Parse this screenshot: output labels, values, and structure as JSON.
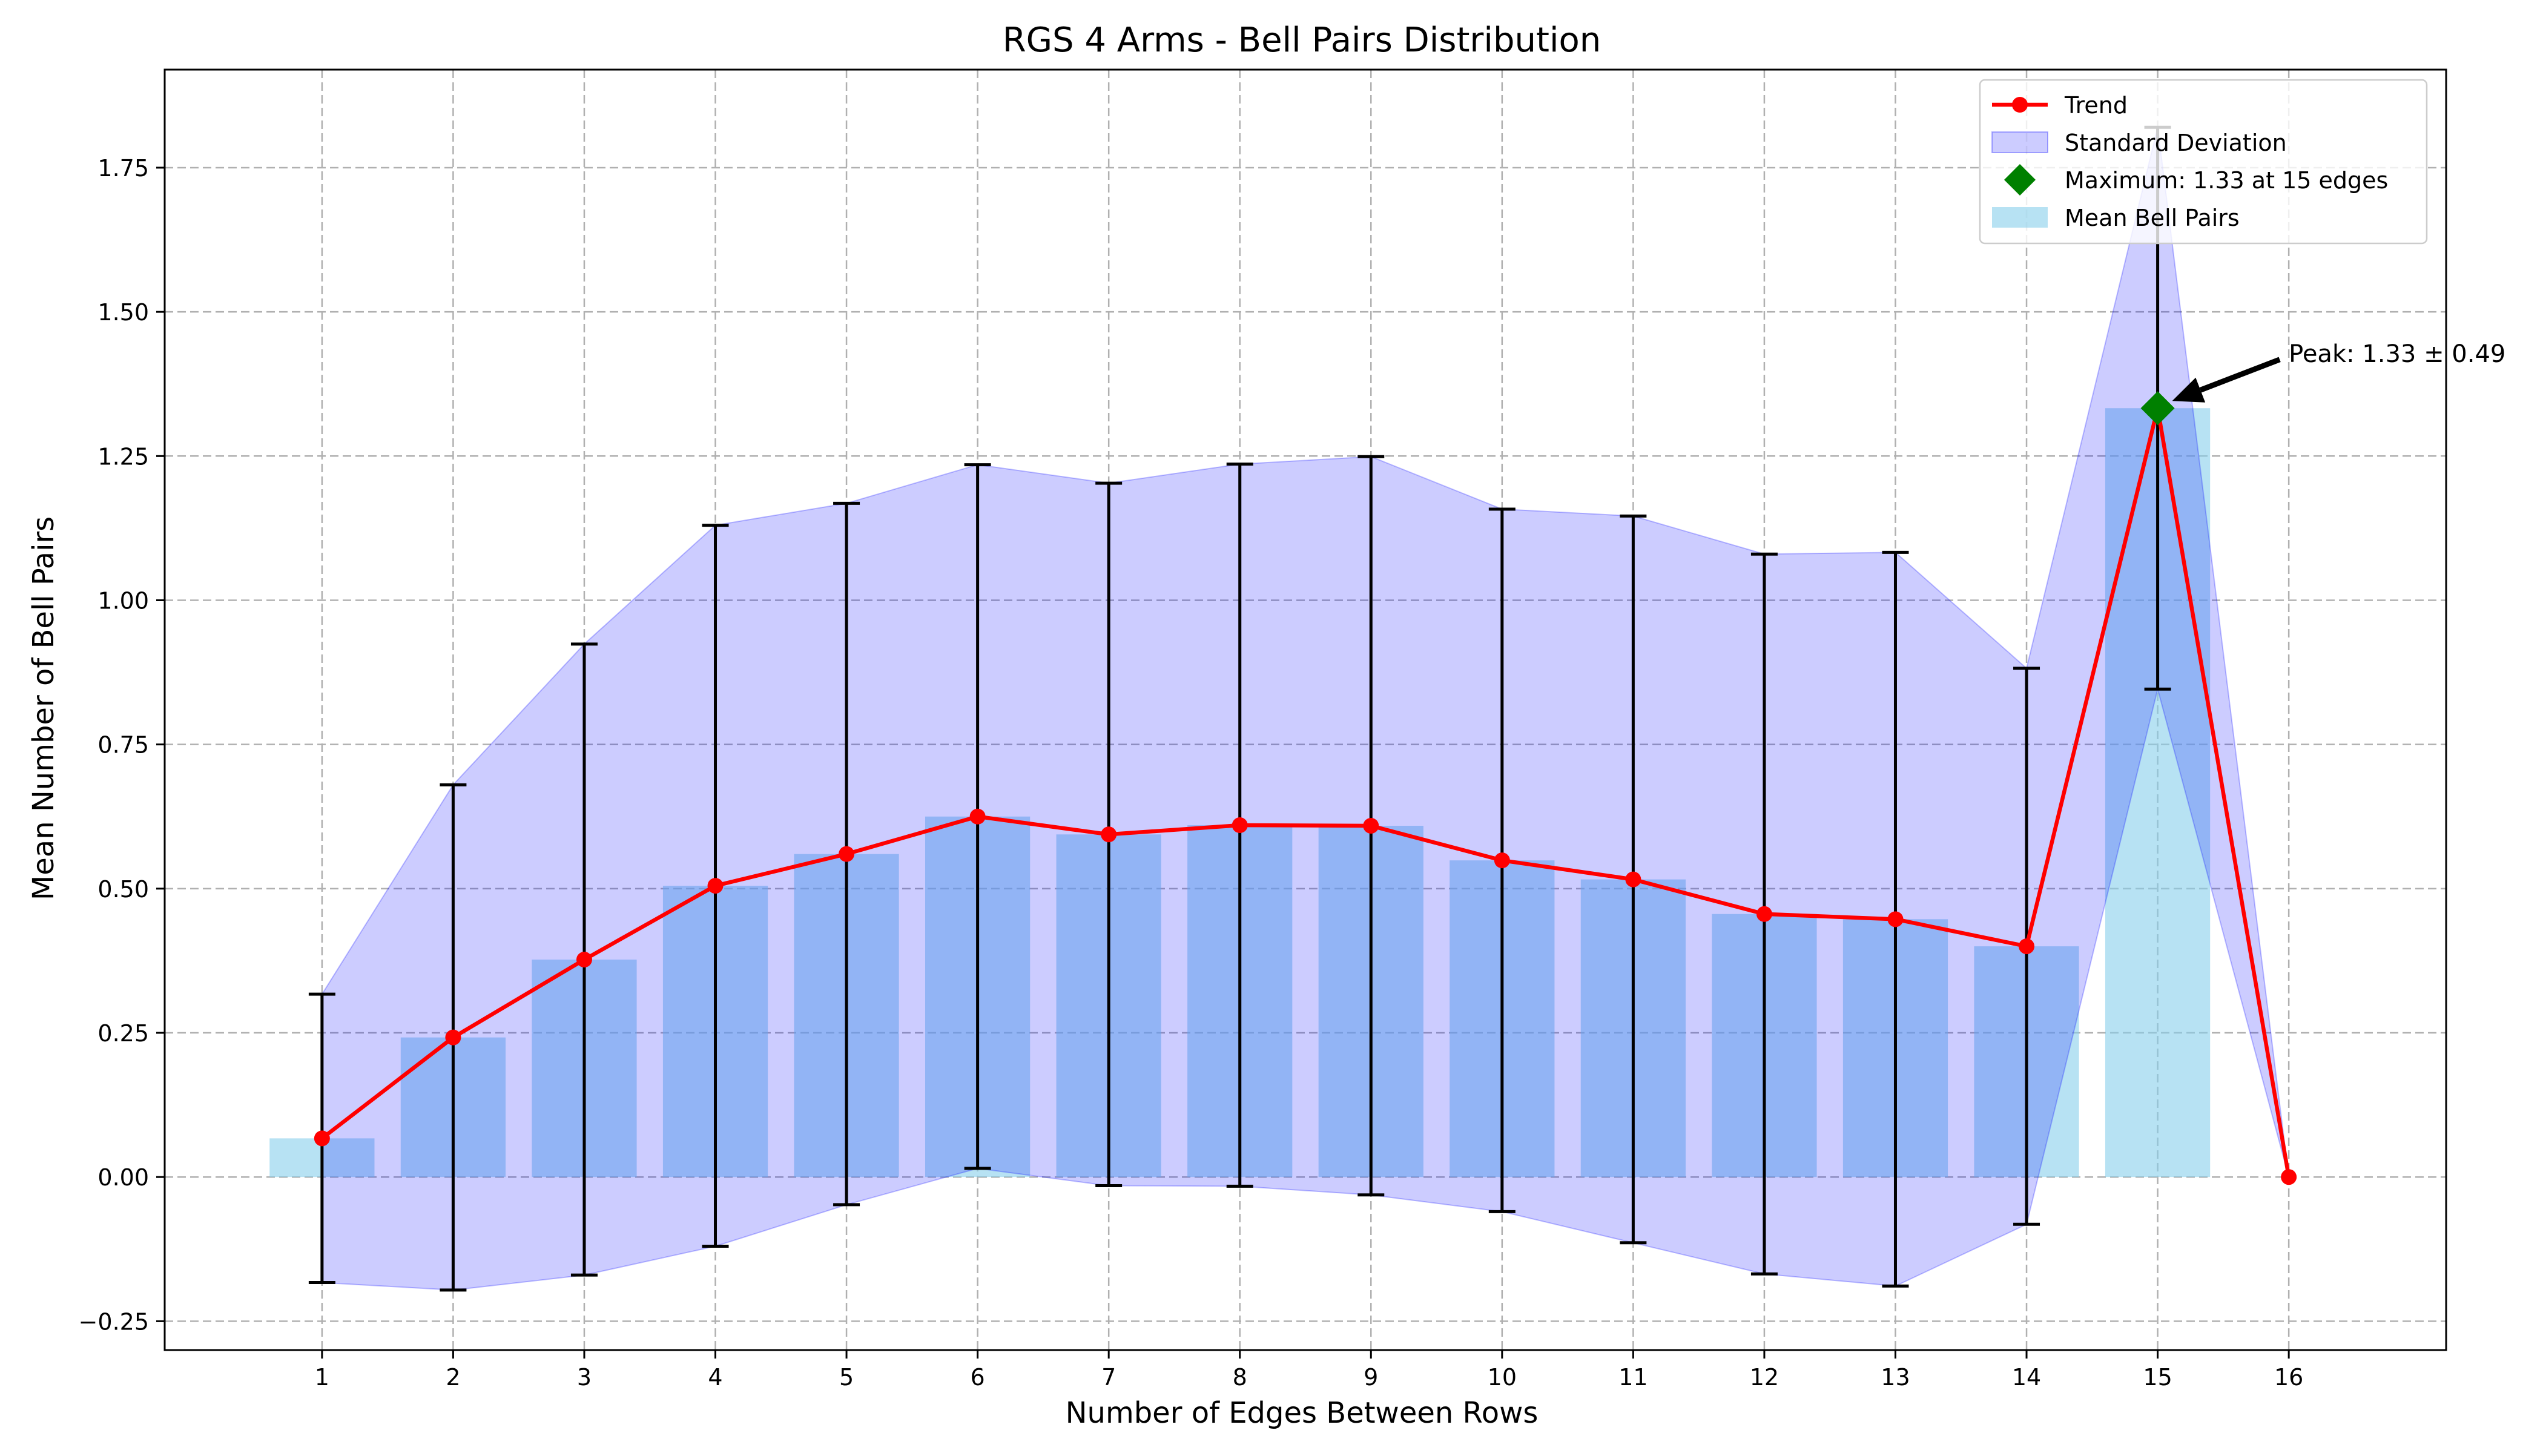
{
  "chart_data": {
    "type": "bar",
    "title": "RGS 4 Arms - Bell Pairs Distribution",
    "xlabel": "Number of Edges Between Rows",
    "ylabel": "Mean Number of Bell Pairs",
    "x": [
      1,
      2,
      3,
      4,
      5,
      6,
      7,
      8,
      9,
      10,
      11,
      12,
      13,
      14,
      15,
      16
    ],
    "xticks": [
      "1",
      "2",
      "3",
      "4",
      "5",
      "6",
      "7",
      "8",
      "9",
      "10",
      "11",
      "12",
      "13",
      "14",
      "15",
      "16"
    ],
    "yticks": [
      "−0.25",
      "0.00",
      "0.25",
      "0.50",
      "0.75",
      "1.00",
      "1.25",
      "1.50",
      "1.75"
    ],
    "ytick_values": [
      -0.25,
      0,
      0.25,
      0.5,
      0.75,
      1.0,
      1.25,
      1.5,
      1.75
    ],
    "xlim": [
      -0.2,
      17.2
    ],
    "ylim": [
      -0.3,
      1.92
    ],
    "grid": true,
    "legend_position": "top-right",
    "series": [
      {
        "name": "Mean Bell Pairs",
        "kind": "bar",
        "color": "#87CEEB",
        "x": [
          1,
          2,
          3,
          4,
          5,
          6,
          7,
          8,
          9,
          10,
          11,
          12,
          13,
          14,
          15
        ],
        "values": [
          0.067,
          0.242,
          0.377,
          0.505,
          0.56,
          0.625,
          0.594,
          0.61,
          0.609,
          0.549,
          0.516,
          0.456,
          0.447,
          0.4,
          1.333
        ]
      },
      {
        "name": "Trend",
        "kind": "line",
        "color": "#FF0000",
        "x": [
          1,
          2,
          3,
          4,
          5,
          6,
          7,
          8,
          9,
          10,
          11,
          12,
          13,
          14,
          15,
          16
        ],
        "values": [
          0.067,
          0.242,
          0.377,
          0.505,
          0.56,
          0.625,
          0.594,
          0.61,
          0.609,
          0.549,
          0.516,
          0.456,
          0.447,
          0.4,
          1.333,
          0.0
        ]
      },
      {
        "name": "Standard Deviation",
        "kind": "band",
        "color": "#0000FF",
        "x": [
          1,
          2,
          3,
          4,
          5,
          6,
          7,
          8,
          9,
          10,
          11,
          12,
          13,
          14,
          15,
          16
        ],
        "std": [
          0.25,
          0.438,
          0.547,
          0.625,
          0.608,
          0.61,
          0.609,
          0.626,
          0.64,
          0.609,
          0.63,
          0.624,
          0.636,
          0.482,
          0.487,
          0.0
        ]
      }
    ],
    "errorbars": {
      "x": [
        1,
        2,
        3,
        4,
        5,
        6,
        7,
        8,
        9,
        10,
        11,
        12,
        13,
        14,
        15
      ],
      "color": "#000000"
    },
    "maximum": {
      "label": "Maximum: 1.33 at 15 edges",
      "x": 15,
      "y": 1.333,
      "color": "#008000"
    },
    "annotation": {
      "text": "Peak: 1.33 ± 0.49",
      "x": 15,
      "y": 1.333,
      "text_x": 16.0,
      "text_y": 1.43
    }
  }
}
